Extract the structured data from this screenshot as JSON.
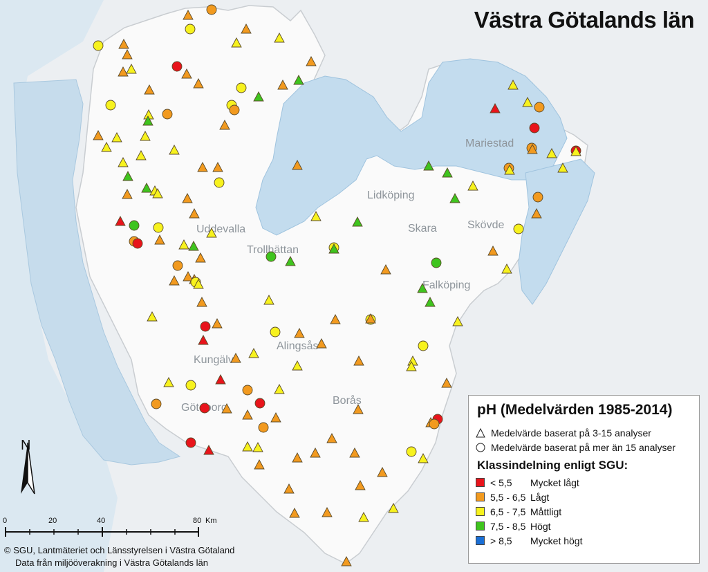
{
  "title": "Västra Götalands län",
  "places": [
    {
      "name": "Mariestad"
    },
    {
      "name": "Lidköping"
    },
    {
      "name": "Skara"
    },
    {
      "name": "Skövde"
    },
    {
      "name": "Uddevalla"
    },
    {
      "name": "Trollhättan"
    },
    {
      "name": "Falköping"
    },
    {
      "name": "Alingsås"
    },
    {
      "name": "Kungälv"
    },
    {
      "name": "Borås"
    },
    {
      "name": "Göteborg"
    }
  ],
  "legend": {
    "title": "pH (Medelvärden 1985-2014)",
    "triangle_label": "Medelvärde baserat på 3-15 analyser",
    "circle_label": "Medelvärde baserat på mer än 15 analyser",
    "classes_title": "Klassindelning enligt SGU:",
    "classes": [
      {
        "range": "< 5,5",
        "label": "Mycket lågt",
        "color": "#e8141b"
      },
      {
        "range": "5,5 - 6,5",
        "label": "Lågt",
        "color": "#f29a1f"
      },
      {
        "range": "6,5 - 7,5",
        "label": "Måttligt",
        "color": "#f7f21e"
      },
      {
        "range": "7,5 - 8,5",
        "label": "Högt",
        "color": "#3fc41e"
      },
      {
        "range": "> 8,5",
        "label": "Mycket högt",
        "color": "#1a6fd6"
      }
    ]
  },
  "north_arrow": {
    "letter": "N"
  },
  "scalebar": {
    "ticks": [
      "0",
      "20",
      "40",
      "80"
    ],
    "unit": "Km"
  },
  "credits": {
    "line1": "© SGU, Lantmäteriet och Länsstyrelsen i Västra Götaland",
    "line2": "Data från miljööverakning i Västra Götalands län"
  },
  "colors": {
    "water": "#c6dcec",
    "land": "#e9ebed",
    "region": "#f9f9f9",
    "lake": "#bfdbef"
  }
}
